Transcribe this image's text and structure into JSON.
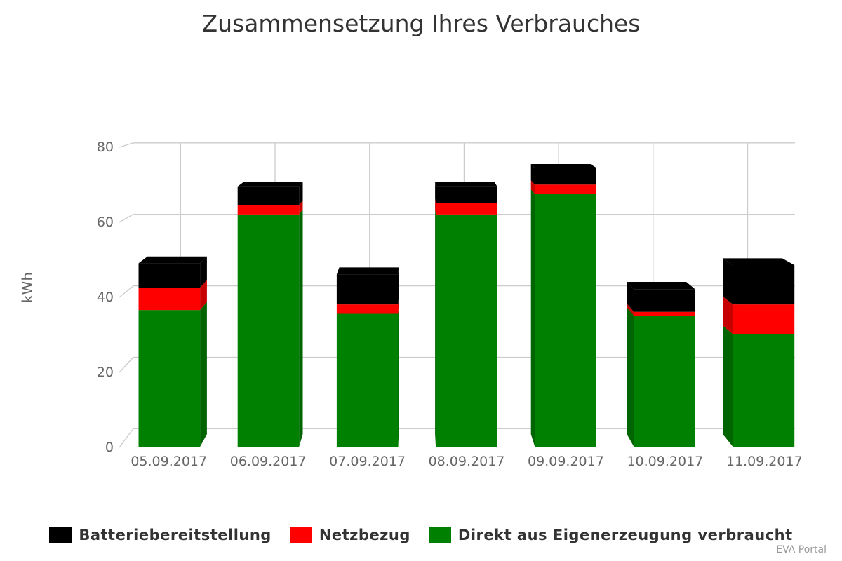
{
  "chart_data": {
    "type": "bar",
    "stacked": true,
    "style": "3d",
    "title": "Zusammensetzung Ihres Verbrauches",
    "ylabel": "kWh",
    "xlabel": "",
    "ylim": [
      0,
      80
    ],
    "yticks": [
      "0",
      "20",
      "40",
      "60",
      "80"
    ],
    "categories": [
      "05.09.2017",
      "06.09.2017",
      "07.09.2017",
      "08.09.2017",
      "09.09.2017",
      "10.09.2017",
      "11.09.2017"
    ],
    "series": [
      {
        "name": "Direkt aus Eigenerzeugung verbraucht",
        "color": "#008000",
        "values": [
          36.5,
          62,
          35.5,
          62,
          67.5,
          35,
          30
        ]
      },
      {
        "name": "Netzbezug",
        "color": "#ff0000",
        "values": [
          6,
          2.5,
          2.5,
          3,
          2.5,
          1,
          8
        ]
      },
      {
        "name": "Batteriebereitstellung",
        "color": "#000000",
        "values": [
          6.5,
          5,
          8,
          4.5,
          4.5,
          6,
          10.5
        ]
      }
    ],
    "legend_order": [
      "Batteriebereitstellung",
      "Netzbezug",
      "Direkt aus Eigenerzeugung verbraucht"
    ],
    "legend_position": "bottom",
    "grid": true
  },
  "credits": "EVA Portal"
}
